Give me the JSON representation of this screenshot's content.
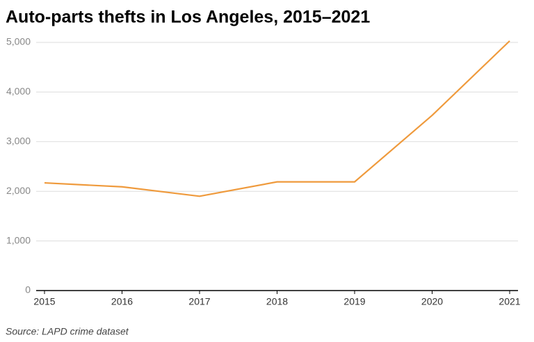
{
  "chart_data": {
    "type": "line",
    "title": "Auto-parts thefts in Los Angeles, 2015–2021",
    "source": "Source: LAPD crime dataset",
    "x": [
      2015,
      2016,
      2017,
      2018,
      2019,
      2020,
      2021
    ],
    "series": [
      {
        "name": "Auto-parts thefts",
        "color": "#ef9a3c",
        "values": [
          2170,
          2090,
          1900,
          2190,
          2190,
          3530,
          5030
        ]
      }
    ],
    "xlim": [
      2015,
      2021
    ],
    "xticks": [
      2015,
      2016,
      2017,
      2018,
      2019,
      2020,
      2021
    ],
    "ylim": [
      0,
      5000
    ],
    "yticks": [
      0,
      {
        "value": 1000,
        "label": "1,000"
      },
      {
        "value": 2000,
        "label": "2,000"
      },
      {
        "value": 3000,
        "label": "3,000"
      },
      {
        "value": 4000,
        "label": "4,000"
      },
      {
        "value": 5000,
        "label": "5,000"
      }
    ],
    "grid": true
  }
}
